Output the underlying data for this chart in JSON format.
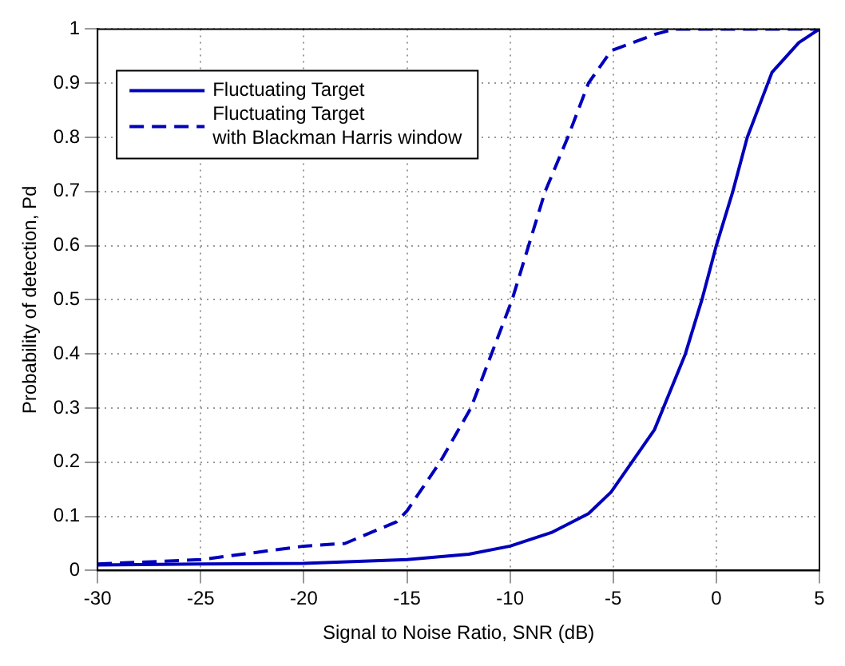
{
  "chart_data": {
    "type": "line",
    "xlabel": "Signal to Noise Ratio, SNR (dB)",
    "ylabel": "Probability of detection, Pd",
    "xlim": [
      -30,
      5
    ],
    "xticks": [
      -30,
      -25,
      -20,
      -15,
      -10,
      -5,
      0,
      5
    ],
    "ylim": [
      0,
      1
    ],
    "yticks": [
      0,
      0.1,
      0.2,
      0.3,
      0.4,
      0.5,
      0.6,
      0.7,
      0.8,
      0.9,
      1
    ],
    "grid": true,
    "legend": "top left",
    "series": [
      {
        "name": "Fluctuating Target",
        "color": "#0000bb",
        "line_style": "solid",
        "x": [
          -30,
          -25,
          -20,
          -15,
          -12,
          -10,
          -8,
          -6.2,
          -5.1,
          -3,
          -1.5,
          -0.7,
          0,
          0.8,
          1.5,
          1.9,
          2.7,
          4,
          5
        ],
        "values": [
          0.01,
          0.012,
          0.013,
          0.02,
          0.03,
          0.045,
          0.07,
          0.105,
          0.145,
          0.26,
          0.4,
          0.5,
          0.6,
          0.7,
          0.8,
          0.84,
          0.92,
          0.975,
          1
        ]
      },
      {
        "name": "Fluctuating Target\nwith Blackman Harris window",
        "color": "#0000bb",
        "line_style": "dashed",
        "x": [
          -30,
          -25,
          -20,
          -18,
          -15.5,
          -15,
          -13.4,
          -11.9,
          -9.9,
          -9.1,
          -8.3,
          -7.2,
          -6.2,
          -5.1,
          -3,
          -2,
          5
        ],
        "values": [
          0.012,
          0.02,
          0.045,
          0.05,
          0.09,
          0.11,
          0.2,
          0.3,
          0.5,
          0.6,
          0.7,
          0.8,
          0.9,
          0.96,
          0.99,
          1,
          1
        ]
      }
    ]
  }
}
